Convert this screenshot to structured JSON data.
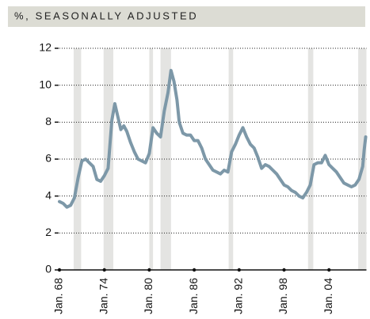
{
  "chart_data": {
    "type": "line",
    "title": "%, SEASONALLY ADJUSTED",
    "series": [
      {
        "color": "#7d98a8",
        "x": [
          1968.0,
          1968.5,
          1969.0,
          1969.5,
          1970.0,
          1970.5,
          1971.0,
          1971.5,
          1972.0,
          1972.5,
          1973.0,
          1973.5,
          1974.0,
          1974.5,
          1975.0,
          1975.4,
          1975.8,
          1976.2,
          1976.6,
          1977.0,
          1977.5,
          1978.0,
          1978.5,
          1979.0,
          1979.5,
          1980.0,
          1980.5,
          1981.0,
          1981.5,
          1982.0,
          1982.5,
          1982.9,
          1983.3,
          1983.7,
          1984.0,
          1984.5,
          1985.0,
          1985.5,
          1986.0,
          1986.5,
          1987.0,
          1987.5,
          1988.0,
          1988.5,
          1989.0,
          1989.5,
          1990.0,
          1990.5,
          1991.0,
          1991.5,
          1992.0,
          1992.5,
          1993.0,
          1993.5,
          1994.0,
          1994.5,
          1995.0,
          1995.5,
          1996.0,
          1996.5,
          1997.0,
          1997.5,
          1998.0,
          1998.5,
          1999.0,
          1999.5,
          2000.0,
          2000.5,
          2001.0,
          2001.5,
          2002.0,
          2002.5,
          2003.0,
          2003.5,
          2004.0,
          2004.5,
          2005.0,
          2005.5,
          2006.0,
          2006.5,
          2007.0,
          2007.5,
          2008.0,
          2008.5,
          2008.7,
          2008.9
        ],
        "values": [
          3.7,
          3.6,
          3.4,
          3.5,
          3.9,
          5.0,
          5.9,
          6.0,
          5.8,
          5.6,
          4.9,
          4.8,
          5.1,
          5.5,
          8.1,
          9.0,
          8.3,
          7.6,
          7.8,
          7.5,
          6.9,
          6.4,
          6.0,
          5.9,
          5.8,
          6.3,
          7.7,
          7.4,
          7.2,
          8.6,
          9.6,
          10.8,
          10.2,
          9.2,
          8.0,
          7.4,
          7.3,
          7.3,
          7.0,
          7.0,
          6.6,
          6.0,
          5.7,
          5.4,
          5.3,
          5.2,
          5.4,
          5.3,
          6.4,
          6.8,
          7.3,
          7.7,
          7.2,
          6.8,
          6.6,
          6.1,
          5.5,
          5.7,
          5.6,
          5.4,
          5.2,
          4.9,
          4.6,
          4.5,
          4.3,
          4.2,
          4.0,
          3.9,
          4.2,
          4.6,
          5.7,
          5.8,
          5.8,
          6.2,
          5.7,
          5.5,
          5.3,
          5.0,
          4.7,
          4.6,
          4.5,
          4.6,
          4.9,
          5.6,
          6.5,
          7.2
        ]
      }
    ],
    "recessions": [
      [
        1969.9,
        1970.9
      ],
      [
        1973.9,
        1975.2
      ],
      [
        1980.0,
        1980.5
      ],
      [
        1981.5,
        1982.9
      ],
      [
        1990.6,
        1991.2
      ],
      [
        2001.2,
        2001.9
      ],
      [
        2007.9,
        2009.0
      ]
    ],
    "recession_color": "#e4e4e2",
    "xlim": [
      1968,
      2009
    ],
    "xticks": [
      {
        "value": 1968,
        "label": "Jan. 68"
      },
      {
        "value": 1974,
        "label": "Jan. 74"
      },
      {
        "value": 1980,
        "label": "Jan. 80"
      },
      {
        "value": 1986,
        "label": "Jan. 86"
      },
      {
        "value": 1992,
        "label": "Jan. 92"
      },
      {
        "value": 1998,
        "label": "Jan. 98"
      },
      {
        "value": 2004,
        "label": "Jan. 04"
      }
    ],
    "ylim": [
      0,
      12
    ],
    "yticks": [
      0,
      2,
      4,
      6,
      8,
      10,
      12
    ],
    "grid": true
  }
}
